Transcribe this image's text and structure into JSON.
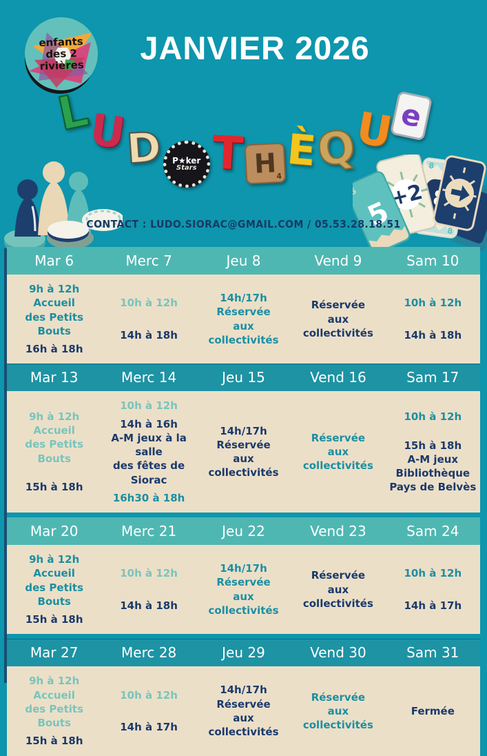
{
  "header": {
    "title": "JANVIER 2026"
  },
  "logo": {
    "lines": [
      "enfants",
      "des 2",
      "rivières"
    ]
  },
  "banner": {
    "word": "LUDOTHÈQUE",
    "letters": [
      {
        "ch": "L",
        "kind": "tetris"
      },
      {
        "ch": "U",
        "kind": "red"
      },
      {
        "ch": "D",
        "kind": "domino"
      },
      {
        "ch": "O",
        "kind": "chip",
        "label_top": "P★ker",
        "label_bottom": "Stars"
      },
      {
        "ch": "T",
        "kind": "dice"
      },
      {
        "ch": "H",
        "kind": "tile",
        "value": "4"
      },
      {
        "ch": "È",
        "kind": "yellow"
      },
      {
        "ch": "Q",
        "kind": "maze"
      },
      {
        "ch": "U",
        "kind": "orange"
      },
      {
        "ch": "E",
        "kind": "card",
        "letter": "e"
      }
    ]
  },
  "contact": {
    "label": "CONTACT : LUDO.SIORAC@GMAIL.COM / 05.53.28.18.51"
  },
  "colors": {
    "background": "#0d96ad",
    "header_light": "#4fb7b2",
    "header_dark": "#1d93a4",
    "panel_cream": "#ecdfc8",
    "text_navy": "#1a3a6b",
    "text_teal": "#1b8fa2",
    "text_seafoam": "#78c5bd",
    "title_white": "#ffffff"
  },
  "calendar": {
    "weeks": [
      {
        "variant": "light",
        "days": [
          {
            "label": "Mar 6",
            "entries": [
              {
                "text": "9h à 12h\nAccueil\ndes Petits Bouts",
                "tone": "teal"
              },
              {
                "text": "16h à 18h",
                "tone": "navy"
              }
            ]
          },
          {
            "label": "Merc 7",
            "entries": [
              {
                "text": "10h à 12h",
                "tone": "seafoam"
              },
              {
                "text": "14h à 18h",
                "tone": "navy"
              }
            ]
          },
          {
            "label": "Jeu 8",
            "entries": [
              {
                "text": "14h/17h\nRéservée\naux collectivités",
                "tone": "teal"
              }
            ]
          },
          {
            "label": "Vend 9",
            "entries": [
              {
                "text": "Réservée\naux\ncollectivités",
                "tone": "navy"
              }
            ]
          },
          {
            "label": "Sam 10",
            "entries": [
              {
                "text": "10h à 12h",
                "tone": "teal"
              },
              {
                "text": "14h à 18h",
                "tone": "navy"
              }
            ]
          }
        ]
      },
      {
        "variant": "dark",
        "days": [
          {
            "label": "Mar 13",
            "entries": [
              {
                "text": "9h à 12h\nAccueil\ndes Petits Bouts",
                "tone": "seafoam"
              },
              {
                "text": "15h à 18h",
                "tone": "navy"
              }
            ]
          },
          {
            "label": "Merc 14",
            "entries": [
              {
                "text": "10h à 12h",
                "tone": "seafoam"
              },
              {
                "text": "14h à 16h\nA-M jeux à la salle\ndes fêtes de Siorac",
                "tone": "navy"
              },
              {
                "text": "16h30 à 18h",
                "tone": "teal"
              }
            ]
          },
          {
            "label": "Jeu 15",
            "entries": [
              {
                "text": "14h/17h\nRéservée\naux collectivités",
                "tone": "navy"
              }
            ]
          },
          {
            "label": "Vend 16",
            "entries": [
              {
                "text": "Réservée\naux\ncollectivités",
                "tone": "teal"
              }
            ]
          },
          {
            "label": "Sam 17",
            "entries": [
              {
                "text": "10h à 12h",
                "tone": "teal"
              },
              {
                "text": "15h à 18h\nA-M jeux\nBibliothèque\nPays de Belvès",
                "tone": "navy"
              }
            ]
          }
        ]
      },
      {
        "variant": "light",
        "days": [
          {
            "label": "Mar 20",
            "entries": [
              {
                "text": "9h à 12h\nAccueil\ndes Petits Bouts",
                "tone": "teal"
              },
              {
                "text": "15h à 18h",
                "tone": "navy"
              }
            ]
          },
          {
            "label": "Merc 21",
            "entries": [
              {
                "text": "10h à 12h",
                "tone": "seafoam"
              },
              {
                "text": "14h à 18h",
                "tone": "navy"
              }
            ]
          },
          {
            "label": "Jeu 22",
            "entries": [
              {
                "text": "14h/17h\nRéservée\naux collectivités",
                "tone": "teal"
              }
            ]
          },
          {
            "label": "Vend 23",
            "entries": [
              {
                "text": "Réservée\naux\ncollectivités",
                "tone": "navy"
              }
            ]
          },
          {
            "label": "Sam 24",
            "entries": [
              {
                "text": "10h à 12h",
                "tone": "teal"
              },
              {
                "text": "14h à 17h",
                "tone": "navy"
              }
            ]
          }
        ]
      },
      {
        "variant": "dark",
        "days": [
          {
            "label": "Mar 27",
            "entries": [
              {
                "text": "9h à 12h\nAccueil\ndes Petits Bouts",
                "tone": "seafoam"
              },
              {
                "text": "15h à 18h",
                "tone": "navy"
              }
            ]
          },
          {
            "label": "Merc 28",
            "entries": [
              {
                "text": "10h à 12h",
                "tone": "seafoam"
              },
              {
                "text": "14h à 17h",
                "tone": "navy"
              }
            ]
          },
          {
            "label": "Jeu 29",
            "entries": [
              {
                "text": "14h/17h\nRéservée\naux collectivités",
                "tone": "navy"
              }
            ]
          },
          {
            "label": "Vend 30",
            "entries": [
              {
                "text": "Réservée\naux\ncollectivités",
                "tone": "teal"
              }
            ]
          },
          {
            "label": "Sam 31",
            "entries": [
              {
                "text": "Fermée",
                "tone": "navy"
              }
            ]
          }
        ]
      }
    ]
  }
}
